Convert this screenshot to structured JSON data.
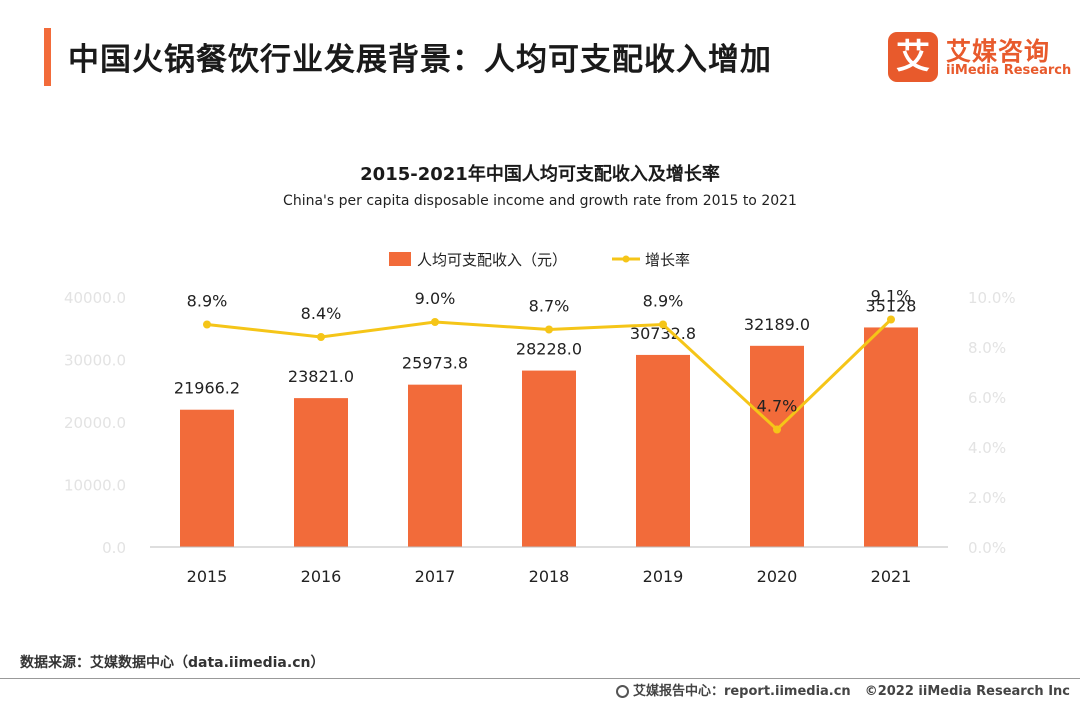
{
  "header": {
    "title": "中国火锅餐饮行业发展背景：人均可支配收入增加",
    "brand_logo": "艾",
    "brand_cn": "艾媒咨询",
    "brand_en": "iiMedia Research"
  },
  "chart_data": {
    "type": "bar",
    "title": "2015-2021年中国人均可支配收入及增长率",
    "subtitle": "China's per capita disposable income and growth rate from 2015 to 2021",
    "categories": [
      "2015",
      "2016",
      "2017",
      "2018",
      "2019",
      "2020",
      "2021"
    ],
    "series": [
      {
        "name": "人均可支配收入（元）",
        "type": "bar",
        "axis": "left",
        "values": [
          21966.2,
          23821.0,
          25973.8,
          28228.0,
          30732.8,
          32189.0,
          35128
        ],
        "labels": [
          "21966.2",
          "23821.0",
          "25973.8",
          "28228.0",
          "30732.8",
          "32189.0",
          "35128"
        ],
        "color": "#f26b3a"
      },
      {
        "name": "增长率",
        "type": "line",
        "axis": "right",
        "values": [
          8.9,
          8.4,
          9.0,
          8.7,
          8.9,
          4.7,
          9.1
        ],
        "labels": [
          "8.9%",
          "8.4%",
          "9.0%",
          "8.7%",
          "8.9%",
          "4.7%",
          "9.1%"
        ],
        "color": "#f5c518"
      }
    ],
    "y_left": {
      "min": 0,
      "max": 40000,
      "ticks": [
        "0.0",
        "10000.0",
        "20000.0",
        "30000.0",
        "40000.0"
      ]
    },
    "y_right": {
      "min": 0,
      "max": 10,
      "ticks": [
        "0.0%",
        "2.0%",
        "4.0%",
        "6.0%",
        "8.0%",
        "10.0%"
      ]
    },
    "legend_position": "top-center",
    "grid": false
  },
  "footer": {
    "source": "数据来源：艾媒数据中心（data.iimedia.cn）",
    "report_center": "艾媒报告中心：report.iimedia.cn",
    "copyright": "©2022  iiMedia Research  Inc"
  }
}
